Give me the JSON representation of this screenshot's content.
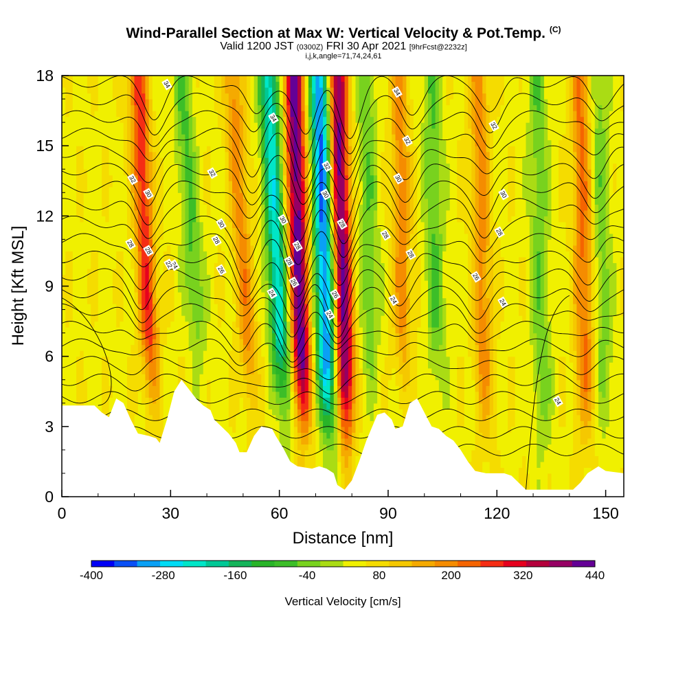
{
  "chart_data": {
    "type": "heatmap",
    "title": "Wind-Parallel Section at Max W: Vertical Velocity & Pot.Temp.",
    "title_mark": "(C)",
    "subtitle": {
      "valid": "Valid 1200 JST",
      "utc": "(0300Z)",
      "date": "FRI 30 Apr 2021",
      "forecast": "[9hrFcst@2232z]"
    },
    "indices_line": "i,j,k,angle=71,74,24,61",
    "xlabel": "Distance [nm]",
    "ylabel": "Height [Kft MSL]",
    "xlim": [
      0,
      155
    ],
    "ylim": [
      0,
      18
    ],
    "x_ticks": [
      0,
      30,
      60,
      90,
      120,
      150
    ],
    "y_ticks": [
      0,
      3,
      6,
      9,
      12,
      15,
      18
    ],
    "colorbar": {
      "label": "Vertical Velocity [cm/s]",
      "tick_labels": [
        -400,
        -280,
        -160,
        -40,
        80,
        200,
        320,
        440
      ],
      "levels": [
        -400,
        -360,
        -320,
        -280,
        -240,
        -200,
        -160,
        -120,
        -80,
        -40,
        0,
        40,
        80,
        120,
        160,
        200,
        240,
        280,
        320,
        360,
        400,
        440
      ],
      "colors": [
        "#0000f5",
        "#0a50f5",
        "#0aa0f5",
        "#00dcf5",
        "#00e6c8",
        "#00c896",
        "#14b45a",
        "#28b428",
        "#3cbe28",
        "#78d21e",
        "#aadc14",
        "#f0f000",
        "#f5dc00",
        "#f5c800",
        "#f5aa00",
        "#f58c00",
        "#f56400",
        "#f52d14",
        "#e6001e",
        "#b4003c",
        "#960064",
        "#640096"
      ]
    },
    "updraft_bands": [
      {
        "x_bottom": 26,
        "x_top": 21,
        "w": 240
      },
      {
        "x_bottom": 54,
        "x_top": 47,
        "w": 150
      },
      {
        "x_bottom": 67,
        "x_top": 64,
        "w": 400
      },
      {
        "x_bottom": 79,
        "x_top": 76,
        "w": 380
      },
      {
        "x_bottom": 95,
        "x_top": 93,
        "w": 150
      },
      {
        "x_bottom": 117,
        "x_top": 115,
        "w": 150
      },
      {
        "x_bottom": 145,
        "x_top": 143,
        "w": 180
      }
    ],
    "downdraft_bands": [
      {
        "x_bottom": 40,
        "x_top": 33,
        "w": -120
      },
      {
        "x_bottom": 62,
        "x_top": 57,
        "w": -300
      },
      {
        "x_bottom": 74,
        "x_top": 71,
        "w": -400
      },
      {
        "x_bottom": 86,
        "x_top": 84,
        "w": -100
      },
      {
        "x_bottom": 104,
        "x_top": 102,
        "w": -110
      },
      {
        "x_bottom": 133,
        "x_top": 131,
        "w": -100
      },
      {
        "x_bottom": 150,
        "x_top": 148,
        "w": -90
      }
    ],
    "terrain_kft": [
      [
        0,
        3.9
      ],
      [
        9,
        3.9
      ],
      [
        11,
        3.6
      ],
      [
        13,
        3.4
      ],
      [
        15,
        4.2
      ],
      [
        17,
        4.0
      ],
      [
        19,
        3.3
      ],
      [
        21,
        2.7
      ],
      [
        24,
        2.6
      ],
      [
        26,
        2.5
      ],
      [
        27,
        2.3
      ],
      [
        29,
        3.3
      ],
      [
        31,
        4.5
      ],
      [
        33,
        5.0
      ],
      [
        35,
        4.6
      ],
      [
        37,
        4.2
      ],
      [
        39,
        3.9
      ],
      [
        41,
        3.7
      ],
      [
        42,
        3.3
      ],
      [
        44,
        3.0
      ],
      [
        46,
        2.7
      ],
      [
        48,
        2.3
      ],
      [
        49,
        1.9
      ],
      [
        51,
        1.9
      ],
      [
        53,
        2.6
      ],
      [
        55,
        3.0
      ],
      [
        58,
        2.9
      ],
      [
        59,
        2.6
      ],
      [
        61,
        2.1
      ],
      [
        63,
        1.5
      ],
      [
        65,
        1.3
      ],
      [
        69,
        1.2
      ],
      [
        71,
        1.3
      ],
      [
        73,
        1.2
      ],
      [
        75,
        1.0
      ],
      [
        76,
        0.5
      ],
      [
        78,
        0.3
      ],
      [
        80,
        0.7
      ],
      [
        82,
        1.5
      ],
      [
        84,
        2.4
      ],
      [
        87,
        3.5
      ],
      [
        89,
        3.6
      ],
      [
        91,
        3.3
      ],
      [
        92,
        2.9
      ],
      [
        94,
        3.0
      ],
      [
        96,
        4.0
      ],
      [
        98,
        4.2
      ],
      [
        100,
        3.6
      ],
      [
        102,
        3.0
      ],
      [
        104,
        2.9
      ],
      [
        106,
        2.6
      ],
      [
        108,
        2.4
      ],
      [
        110,
        2.0
      ],
      [
        112,
        1.5
      ],
      [
        114,
        1.1
      ],
      [
        117,
        1.0
      ],
      [
        122,
        1.0
      ],
      [
        124,
        0.9
      ],
      [
        126,
        0.6
      ],
      [
        128,
        0.3
      ],
      [
        141,
        0.3
      ],
      [
        143,
        0.6
      ],
      [
        145,
        1.0
      ],
      [
        148,
        1.3
      ],
      [
        150,
        1.1
      ],
      [
        155,
        1.0
      ]
    ],
    "theta_contour_labels": [
      "34",
      "34",
      "34",
      "32",
      "32",
      "32",
      "32",
      "32",
      "30",
      "30",
      "30",
      "30",
      "30",
      "30",
      "28",
      "28",
      "28",
      "28",
      "28",
      "28",
      "28",
      "28",
      "28",
      "26",
      "26",
      "26",
      "26",
      "24",
      "24",
      "24",
      "24",
      "24",
      "24",
      "22"
    ]
  }
}
